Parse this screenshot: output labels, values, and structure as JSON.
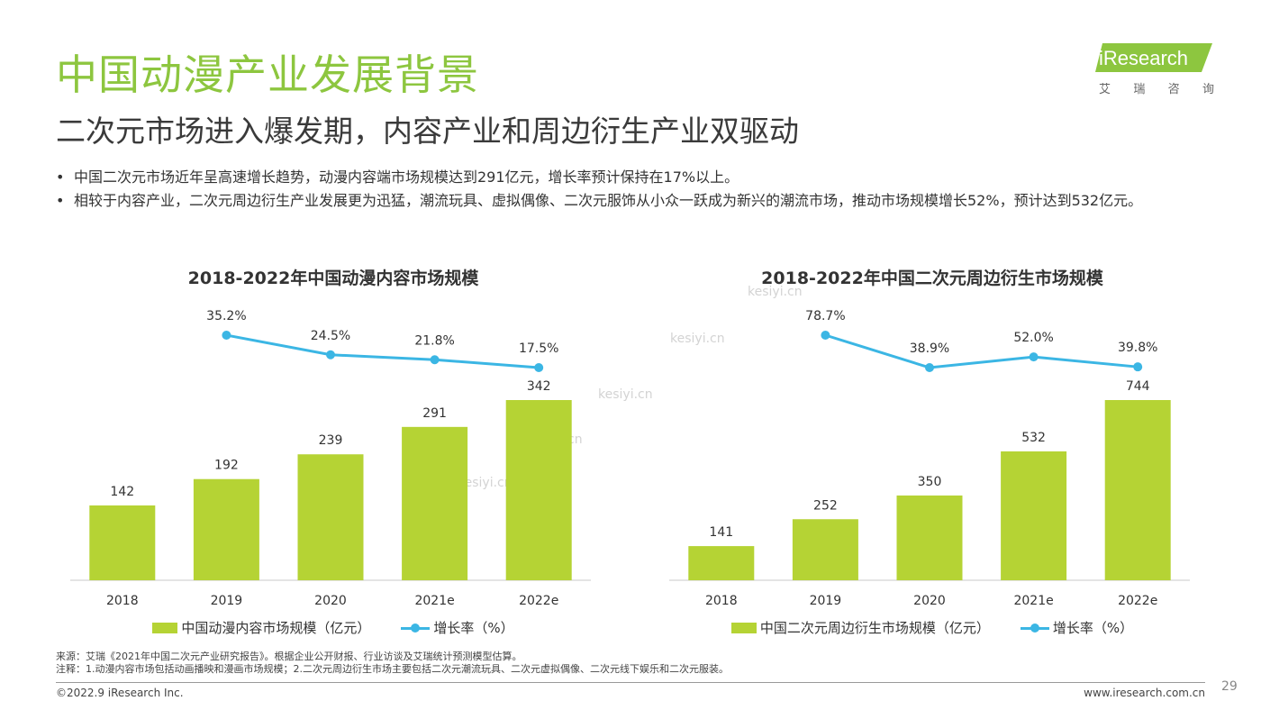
{
  "header": {
    "title": "中国动漫产业发展背景",
    "subtitle": "二次元市场进入爆发期，内容产业和周边衍生产业双驱动"
  },
  "logo": {
    "brand": "iResearch",
    "cn_chars": [
      "艾",
      "瑞",
      "咨",
      "询"
    ],
    "color": "#8DC63F"
  },
  "bullets": [
    "中国二次元市场近年呈高速增长趋势，动漫内容端市场规模达到291亿元，增长率预计保持在17%以上。",
    "相较于内容产业，二次元周边衍生产业发展更为迅猛，潮流玩具、虚拟偶像、二次元服饰从小众一跃成为新兴的潮流市场，推动市场规模增长52%，预计达到532亿元。"
  ],
  "bullet_symbol": "•",
  "colors": {
    "bar": "#B5D334",
    "line": "#3BB6E4",
    "title": "#8DC63F"
  },
  "chart_data": [
    {
      "type": "bar",
      "title": "2018-2022年中国动漫内容市场规模",
      "categories": [
        "2018",
        "2019",
        "2020",
        "2021e",
        "2022e"
      ],
      "series": [
        {
          "name": "中国动漫内容市场规模（亿元）",
          "type": "bar",
          "values": [
            142,
            192,
            239,
            291,
            342
          ],
          "labels": [
            "142",
            "192",
            "239",
            "291",
            "342"
          ]
        },
        {
          "name": "增长率（%）",
          "type": "line",
          "values": [
            null,
            35.2,
            24.5,
            21.8,
            17.5
          ],
          "labels": [
            "",
            "35.2%",
            "24.5%",
            "21.8%",
            "17.5%"
          ]
        }
      ],
      "bar_max": 342,
      "line_range": [
        17.5,
        35.2
      ],
      "grid": false,
      "legend_position": "bottom"
    },
    {
      "type": "bar",
      "title": "2018-2022年中国二次元周边衍生市场规模",
      "categories": [
        "2018",
        "2019",
        "2020",
        "2021e",
        "2022e"
      ],
      "series": [
        {
          "name": "中国二次元周边衍生市场规模（亿元）",
          "type": "bar",
          "values": [
            141,
            252,
            350,
            532,
            744
          ],
          "labels": [
            "141",
            "252",
            "350",
            "532",
            "744"
          ]
        },
        {
          "name": "增长率（%）",
          "type": "line",
          "values": [
            null,
            78.7,
            38.9,
            52.0,
            39.8
          ],
          "labels": [
            "",
            "78.7%",
            "38.9%",
            "52.0%",
            "39.8%"
          ]
        }
      ],
      "bar_max": 744,
      "line_range": [
        38.9,
        78.7
      ],
      "grid": false,
      "legend_position": "bottom"
    }
  ],
  "notes": {
    "source": "来源：艾瑞《2021年中国二次元产业研究报告》。根据企业公开财报、行业访谈及艾瑞统计预测模型估算。",
    "remark": "注释：1.动漫内容市场包括动画播映和漫画市场规模；2.二次元周边衍生市场主要包括二次元潮流玩具、二次元虚拟偶像、二次元线下娱乐和二次元服装。"
  },
  "footer": {
    "copyright": "©2022.9 iResearch Inc.",
    "website": "www.iresearch.com.cn",
    "page": "29"
  },
  "watermark": "kesiyi.cn"
}
